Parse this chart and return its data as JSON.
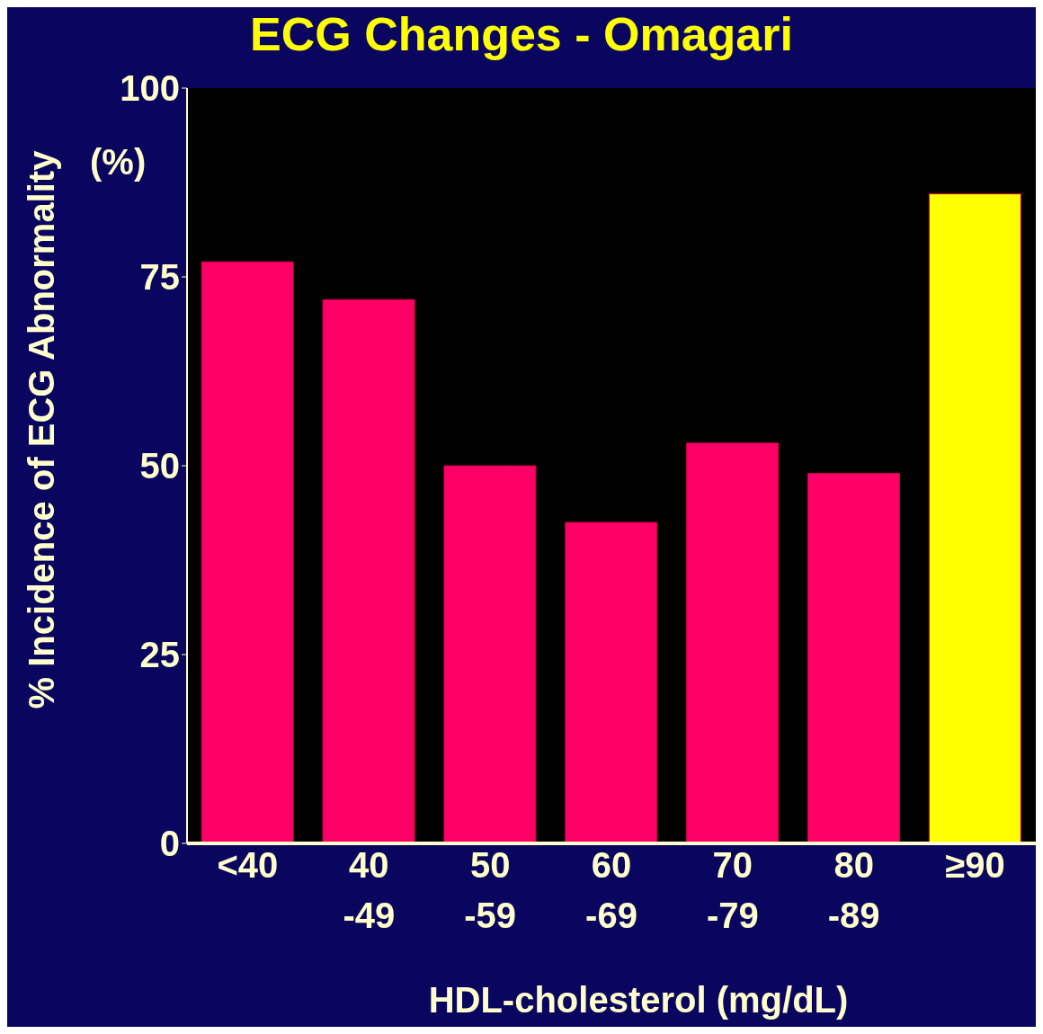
{
  "chart_data": {
    "type": "bar",
    "title": "ECG Changes - Omagari",
    "ylabel": "% Incidence of ECG Abnormality",
    "xlabel": "HDL-cholesterol (mg/dL)",
    "annotations": [
      "(%)"
    ],
    "categories": [
      "<40",
      "40\n-49",
      "50\n-59",
      "60\n-69",
      "70\n-79",
      "80\n-89",
      "≥90"
    ],
    "values": [
      77,
      72,
      50,
      42.5,
      53,
      49,
      86
    ],
    "colors": [
      "#ff0066",
      "#ff0066",
      "#ff0066",
      "#ff0066",
      "#ff0066",
      "#ff0066",
      "#ffff00"
    ],
    "ylim": [
      0,
      100
    ],
    "yticks": [
      0,
      25,
      50,
      75,
      100
    ]
  }
}
